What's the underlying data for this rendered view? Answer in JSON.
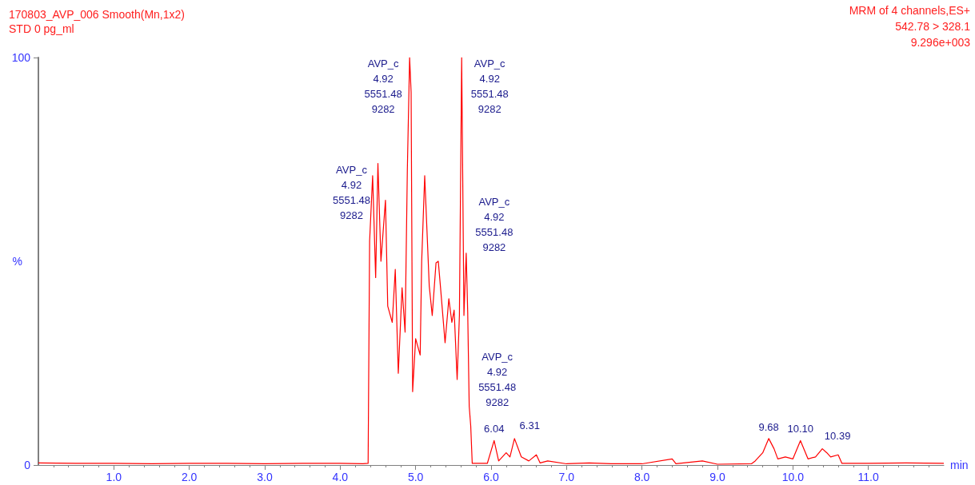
{
  "chart_data": {
    "type": "line",
    "title": "170803_AVP_006 Smooth(Mn,1x2)",
    "subtitle": "STD 0 pg_ml",
    "xlabel": "min",
    "ylabel": "%",
    "annotations": [
      "MRM of 4 channels,ES+",
      "542.78 > 328.1",
      "9.296e+003",
      {
        "text": "AVP_c\n4.92\n5551.48\n9282",
        "x": 4.5,
        "y": 74
      },
      {
        "text": "AVP_c\n4.92\n5551.48\n9282",
        "x": 4.92,
        "y": 100
      },
      {
        "text": "AVP_c\n4.92\n5551.48\n9282",
        "x": 5.61,
        "y": 100
      },
      {
        "text": "AVP_c\n4.92\n5551.48\n9282",
        "x": 5.67,
        "y": 52
      },
      {
        "text": "AVP_c\n4.92\n5551.48\n9282",
        "x": 5.71,
        "y": 14
      },
      {
        "text": "6.04",
        "x": 6.04,
        "y": 6
      },
      {
        "text": "6.31",
        "x": 6.31,
        "y": 6.5
      },
      {
        "text": "9.68",
        "x": 9.68,
        "y": 6.5
      },
      {
        "text": "10.10",
        "x": 10.1,
        "y": 6
      },
      {
        "text": "10.39",
        "x": 10.39,
        "y": 4
      }
    ],
    "x": [
      0,
      0.5,
      1,
      1.5,
      2,
      2.5,
      3,
      3.5,
      4,
      4.3,
      4.37,
      4.39,
      4.43,
      4.47,
      4.5,
      4.54,
      4.6,
      4.63,
      4.69,
      4.73,
      4.77,
      4.82,
      4.86,
      4.89,
      4.92,
      4.94,
      4.96,
      5.0,
      5.06,
      5.08,
      5.12,
      5.15,
      5.18,
      5.22,
      5.27,
      5.3,
      5.33,
      5.39,
      5.44,
      5.48,
      5.51,
      5.55,
      5.58,
      5.61,
      5.64,
      5.67,
      5.69,
      5.71,
      5.73,
      5.75,
      5.95,
      6.04,
      6.1,
      6.2,
      6.25,
      6.31,
      6.4,
      6.5,
      6.6,
      6.65,
      6.75,
      7.0,
      7.3,
      7.6,
      8.0,
      8.4,
      8.45,
      8.7,
      8.8,
      9.0,
      9.45,
      9.5,
      9.6,
      9.68,
      9.75,
      9.8,
      9.9,
      10.0,
      10.1,
      10.2,
      10.3,
      10.39,
      10.45,
      10.5,
      10.6,
      10.65,
      11.0,
      11.5,
      12.0
    ],
    "series": [
      {
        "color": "#ff0000",
        "values": [
          0.5,
          0.4,
          0.4,
          0.3,
          0.4,
          0.4,
          0.3,
          0.4,
          0.4,
          0.3,
          0.4,
          55,
          71,
          46,
          74,
          50,
          65,
          39,
          35,
          48,
          22.5,
          43.5,
          32.6,
          72.5,
          100,
          91.5,
          18,
          31,
          27,
          50,
          71,
          57.6,
          44,
          36.7,
          49.6,
          50,
          43.5,
          30,
          40.8,
          35,
          38,
          21,
          36.7,
          100,
          36.7,
          52,
          37.5,
          14.4,
          9.6,
          0.4,
          0.4,
          6,
          1,
          3,
          2,
          6.5,
          2,
          1,
          2.5,
          0.5,
          1,
          0.3,
          0.5,
          0.3,
          0.3,
          1.5,
          0.3,
          0.8,
          1,
          0.2,
          0.3,
          1,
          3,
          6.5,
          4,
          1.5,
          2,
          1.5,
          6,
          1.5,
          2,
          4,
          3,
          2,
          2.5,
          0.4,
          0.4,
          0.5,
          0.4
        ]
      }
    ],
    "xlim": [
      0,
      12
    ],
    "xticks": [
      {
        "value": 1,
        "label": "1.0"
      },
      {
        "value": 2,
        "label": "2.0"
      },
      {
        "value": 3,
        "label": "3.0"
      },
      {
        "value": 4,
        "label": "4.0"
      },
      {
        "value": 5,
        "label": "5.0"
      },
      {
        "value": 6,
        "label": "6.0"
      },
      {
        "value": 7,
        "label": "7.0"
      },
      {
        "value": 8,
        "label": "8.0"
      },
      {
        "value": 9,
        "label": "9.0"
      },
      {
        "value": 10,
        "label": "10.0"
      },
      {
        "value": 11,
        "label": "11.0"
      }
    ],
    "ylim": [
      0,
      100
    ],
    "yticks": [
      0,
      100
    ],
    "grid": false,
    "marker": "none",
    "line_style": "solid"
  }
}
